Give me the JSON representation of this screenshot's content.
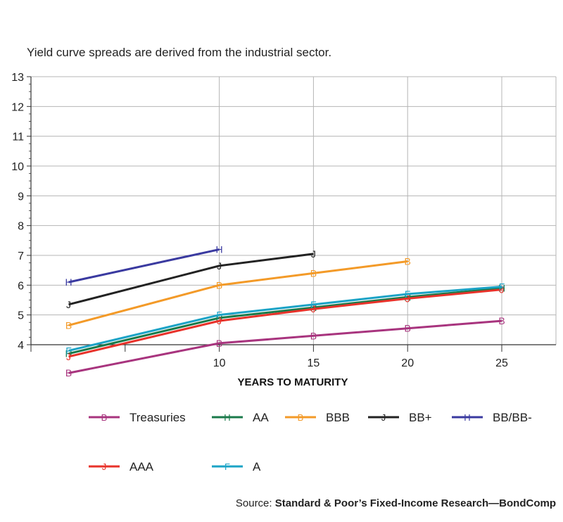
{
  "chart_data": {
    "type": "line",
    "subtitle": "Yield curve spreads are derived from the industrial sector.",
    "xlabel": "YEARS TO MATURITY",
    "ylabel": "",
    "xlim": [
      0,
      25
    ],
    "ylim": [
      4,
      13
    ],
    "x_ticks": [
      10,
      15,
      20,
      25
    ],
    "y_ticks": [
      4,
      5,
      6,
      7,
      8,
      9,
      10,
      11,
      12,
      13
    ],
    "grid": true,
    "legend_position": "bottom",
    "series": [
      {
        "name": "Treasuries",
        "color": "#a8347e",
        "marker": "B",
        "x": [
          2,
          10,
          15,
          20,
          25
        ],
        "y": [
          3.05,
          4.05,
          4.3,
          4.55,
          4.8
        ]
      },
      {
        "name": "AA",
        "color": "#1a7a4a",
        "marker": "H",
        "x": [
          2,
          10,
          15,
          20,
          25
        ],
        "y": [
          3.7,
          4.9,
          5.25,
          5.6,
          5.9
        ]
      },
      {
        "name": "BBB",
        "color": "#f39a28",
        "marker": "B",
        "x": [
          2,
          10,
          15,
          20
        ],
        "y": [
          4.65,
          6.0,
          6.4,
          6.8
        ]
      },
      {
        "name": "BB+",
        "color": "#222222",
        "marker": "J",
        "x": [
          2,
          10,
          15
        ],
        "y": [
          5.35,
          6.65,
          7.05
        ]
      },
      {
        "name": "BB/BB-",
        "color": "#3a3aa0",
        "marker": "H",
        "x": [
          2,
          10
        ],
        "y": [
          6.1,
          7.2
        ]
      },
      {
        "name": "AAA",
        "color": "#e8322a",
        "marker": "J",
        "x": [
          2,
          10,
          15,
          20,
          25
        ],
        "y": [
          3.6,
          4.8,
          5.2,
          5.55,
          5.85
        ]
      },
      {
        "name": "A",
        "color": "#1ba3c6",
        "marker": "F",
        "x": [
          2,
          10,
          15,
          20,
          25
        ],
        "y": [
          3.8,
          5.0,
          5.35,
          5.7,
          5.95
        ]
      }
    ]
  },
  "source": {
    "prefix": "Source: ",
    "text": "Standard & Poor’s Fixed-Income Research—BondComp"
  }
}
